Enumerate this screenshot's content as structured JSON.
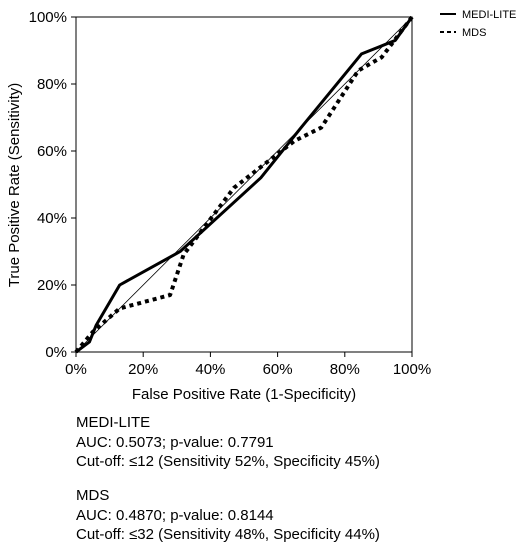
{
  "chart_data": {
    "type": "line",
    "xlabel": "False Positive Rate (1-Specificity)",
    "ylabel": "True Positive Rate (Sensitivity)",
    "xlim": [
      0,
      100
    ],
    "ylim": [
      0,
      100
    ],
    "x_ticks": [
      "0%",
      "20%",
      "40%",
      "60%",
      "80%",
      "100%"
    ],
    "y_ticks": [
      "0%",
      "20%",
      "40%",
      "60%",
      "80%",
      "100%"
    ],
    "legend_position": "top-right, outside plot",
    "grid": false,
    "reference_line": [
      [
        0,
        0
      ],
      [
        100,
        100
      ]
    ],
    "series": [
      {
        "name": "MEDI-LITE",
        "style": "solid",
        "x": [
          0,
          4,
          6,
          13,
          31,
          55,
          67,
          85,
          95,
          100
        ],
        "y": [
          0,
          3,
          8,
          20,
          30,
          52,
          67,
          89,
          93,
          100
        ]
      },
      {
        "name": "MDS",
        "style": "dashed",
        "x": [
          0,
          5,
          13,
          28,
          32,
          47,
          65,
          73,
          84,
          91,
          100
        ],
        "y": [
          0,
          6,
          13,
          17,
          29,
          49,
          63,
          67,
          84,
          88,
          100
        ]
      }
    ]
  },
  "stats": {
    "medi": {
      "name": "MEDI-LITE",
      "auc": "AUC: 0.5073; p-value: 0.7791",
      "cutoff": "Cut-off: ≤12 (Sensitivity 52%, Specificity 45%)"
    },
    "mds": {
      "name": "MDS",
      "auc": "AUC: 0.4870; p-value: 0.8144",
      "cutoff": "Cut-off: ≤32 (Sensitivity 48%, Specificity 44%)"
    }
  }
}
